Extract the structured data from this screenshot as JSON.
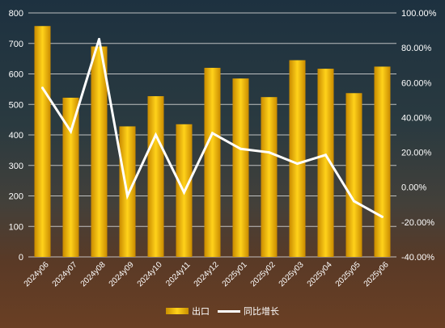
{
  "chart_data": {
    "type": "bar",
    "categories": [
      "2024y06",
      "2024y07",
      "2024y08",
      "2024y09",
      "2024y10",
      "2024y11",
      "2024y12",
      "2025y01",
      "2025y02",
      "2025y03",
      "2025y04",
      "2025y05",
      "2025y06"
    ],
    "series": [
      {
        "name": "出口",
        "type": "bar",
        "axis": "left",
        "values": [
          757,
          522,
          690,
          428,
          527,
          435,
          620,
          585,
          524,
          645,
          617,
          537,
          624
        ]
      },
      {
        "name": "同比增长",
        "type": "line",
        "axis": "right",
        "values": [
          57.0,
          32.0,
          85.0,
          -5.0,
          30.0,
          -3.0,
          31.0,
          22.0,
          20.0,
          13.5,
          18.5,
          -8.0,
          -17.0
        ]
      }
    ],
    "left_axis": {
      "min": 0,
      "max": 800,
      "ticks": [
        "0",
        "100",
        "200",
        "300",
        "400",
        "500",
        "600",
        "700",
        "800"
      ]
    },
    "right_axis": {
      "min": -40,
      "max": 100,
      "ticks": [
        "-40.00%",
        "-20.00%",
        "0.00%",
        "20.00%",
        "40.00%",
        "60.00%",
        "80.00%",
        "100.00%"
      ]
    },
    "grid": "horizontal",
    "legend": "bottom",
    "colors": {
      "bar": "#f2b600",
      "bar_highlight": "#ffd21a",
      "line": "#ffffff",
      "grid": "#d8d8d8"
    }
  }
}
